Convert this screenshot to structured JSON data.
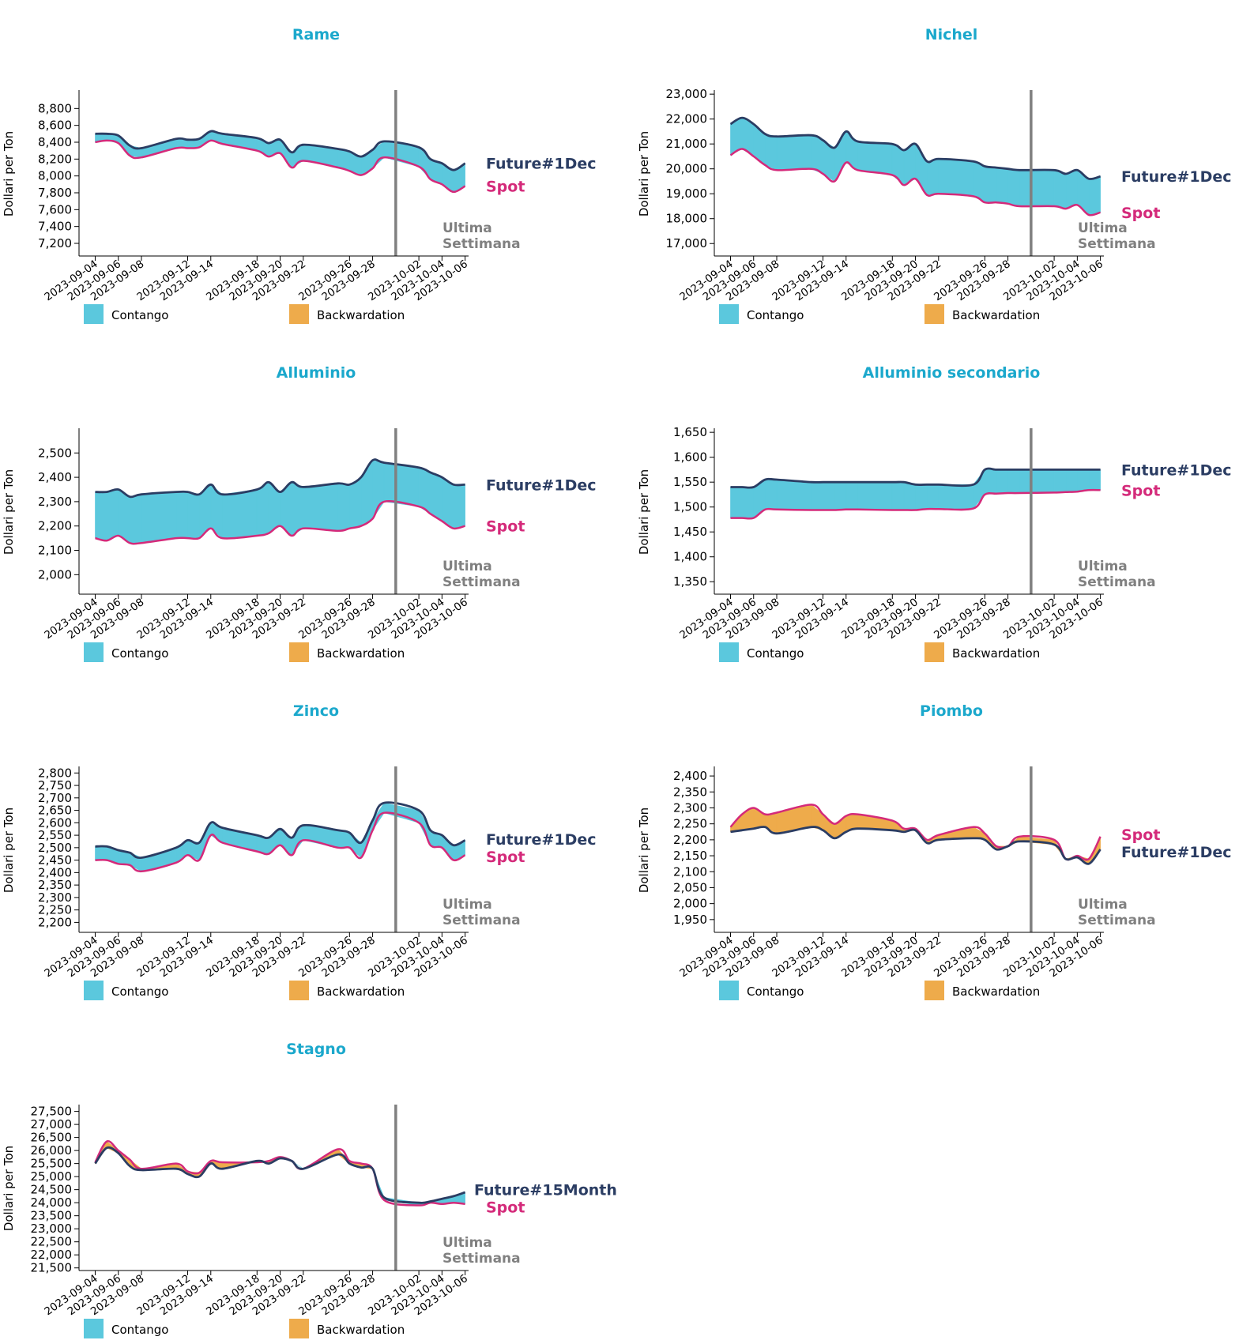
{
  "colors": {
    "title": "#1ba8cc",
    "future": "#2b3d63",
    "spot": "#d42a7a",
    "contango": "#5bc8dd",
    "backwardation": "#eeab4b",
    "last_week_line": "#808080",
    "last_week_text": "#808080",
    "axis": "#000000"
  },
  "common": {
    "ylabel": "Dollari per Ton",
    "last_week_label": [
      "Ultima",
      "Settimana"
    ],
    "last_week_date": "2023-09-30",
    "legend": [
      "Contango",
      "Backwardation"
    ],
    "x_ticks": [
      "2023-09-04",
      "2023-09-06",
      "2023-09-08",
      "2023-09-12",
      "2023-09-14",
      "2023-09-18",
      "2023-09-20",
      "2023-09-22",
      "2023-09-26",
      "2023-09-28",
      "2023-10-02",
      "2023-10-04",
      "2023-10-06"
    ],
    "x_dates": [
      "2023-09-04",
      "2023-09-05",
      "2023-09-06",
      "2023-09-07",
      "2023-09-08",
      "2023-09-11",
      "2023-09-12",
      "2023-09-13",
      "2023-09-14",
      "2023-09-15",
      "2023-09-18",
      "2023-09-19",
      "2023-09-20",
      "2023-09-21",
      "2023-09-22",
      "2023-09-25",
      "2023-09-26",
      "2023-09-27",
      "2023-09-28",
      "2023-09-29",
      "2023-10-02",
      "2023-10-03",
      "2023-10-04",
      "2023-10-05",
      "2023-10-06"
    ]
  },
  "chart_data": [
    {
      "type": "area",
      "title": "Rame",
      "ylim": [
        7050,
        9000
      ],
      "yticks": [
        7200,
        7400,
        7600,
        7800,
        8000,
        8200,
        8400,
        8600,
        8800
      ],
      "series": [
        {
          "name": "Future#1Dec",
          "values": [
            8500,
            8500,
            8480,
            8360,
            8330,
            8440,
            8430,
            8440,
            8530,
            8500,
            8450,
            8390,
            8430,
            8280,
            8370,
            8320,
            8290,
            8230,
            8310,
            8410,
            8340,
            8200,
            8150,
            8070,
            8150
          ]
        },
        {
          "name": "Spot",
          "values": [
            8400,
            8420,
            8390,
            8240,
            8220,
            8330,
            8330,
            8340,
            8420,
            8380,
            8300,
            8230,
            8270,
            8100,
            8180,
            8100,
            8060,
            8010,
            8090,
            8220,
            8110,
            7960,
            7900,
            7810,
            7880
          ]
        }
      ]
    },
    {
      "type": "area",
      "title": "Nichel",
      "ylim": [
        16500,
        23100
      ],
      "yticks": [
        17000,
        18000,
        19000,
        20000,
        21000,
        22000,
        23000
      ],
      "series": [
        {
          "name": "Future#1Dec",
          "values": [
            21800,
            22050,
            21800,
            21400,
            21300,
            21350,
            21150,
            20850,
            21500,
            21100,
            21000,
            20750,
            21000,
            20300,
            20400,
            20300,
            20100,
            20050,
            20000,
            19950,
            19950,
            19800,
            19950,
            19600,
            19700
          ]
        },
        {
          "name": "Spot",
          "values": [
            20550,
            20800,
            20500,
            20150,
            19950,
            20000,
            19800,
            19500,
            20250,
            19950,
            19750,
            19350,
            19600,
            18950,
            19000,
            18900,
            18650,
            18650,
            18600,
            18500,
            18500,
            18400,
            18550,
            18150,
            18250
          ]
        }
      ]
    },
    {
      "type": "area",
      "title": "Alluminio",
      "ylim": [
        1920,
        2595
      ],
      "yticks": [
        2000,
        2100,
        2200,
        2300,
        2400,
        2500
      ],
      "series": [
        {
          "name": "Future#1Dec",
          "values": [
            2340,
            2340,
            2350,
            2320,
            2330,
            2340,
            2340,
            2330,
            2370,
            2330,
            2350,
            2380,
            2340,
            2380,
            2360,
            2375,
            2370,
            2400,
            2470,
            2460,
            2440,
            2420,
            2400,
            2370,
            2370
          ]
        },
        {
          "name": "Spot",
          "values": [
            2150,
            2140,
            2160,
            2130,
            2130,
            2150,
            2150,
            2150,
            2190,
            2150,
            2160,
            2170,
            2200,
            2160,
            2190,
            2180,
            2190,
            2200,
            2230,
            2300,
            2280,
            2250,
            2220,
            2190,
            2200
          ]
        }
      ]
    },
    {
      "type": "area",
      "title": "Alluminio secondario",
      "ylim": [
        1325,
        1655
      ],
      "yticks": [
        1350,
        1400,
        1450,
        1500,
        1550,
        1600,
        1650
      ],
      "series": [
        {
          "name": "Future#1Dec",
          "values": [
            1540,
            1540,
            1540,
            1555,
            1555,
            1550,
            1550,
            1550,
            1550,
            1550,
            1550,
            1550,
            1545,
            1545,
            1545,
            1545,
            1575,
            1575,
            1575,
            1575,
            1575,
            1575,
            1575,
            1575,
            1575
          ]
        },
        {
          "name": "Spot",
          "values": [
            1478,
            1478,
            1478,
            1495,
            1495,
            1494,
            1494,
            1494,
            1495,
            1495,
            1494,
            1494,
            1494,
            1496,
            1496,
            1497,
            1525,
            1527,
            1528,
            1528,
            1529,
            1530,
            1531,
            1534,
            1534
          ]
        }
      ]
    },
    {
      "type": "area",
      "title": "Zinco",
      "ylim": [
        2160,
        2820
      ],
      "yticks": [
        2200,
        2250,
        2300,
        2350,
        2400,
        2450,
        2500,
        2550,
        2600,
        2650,
        2700,
        2750,
        2800
      ],
      "series": [
        {
          "name": "Future#1Dec",
          "values": [
            2505,
            2505,
            2490,
            2480,
            2460,
            2500,
            2530,
            2520,
            2600,
            2580,
            2550,
            2540,
            2575,
            2540,
            2590,
            2570,
            2560,
            2520,
            2610,
            2680,
            2650,
            2570,
            2550,
            2510,
            2530
          ]
        },
        {
          "name": "Spot",
          "values": [
            2450,
            2450,
            2435,
            2430,
            2405,
            2440,
            2470,
            2450,
            2550,
            2520,
            2485,
            2475,
            2510,
            2470,
            2530,
            2500,
            2500,
            2460,
            2570,
            2640,
            2600,
            2510,
            2500,
            2450,
            2470
          ]
        }
      ]
    },
    {
      "type": "area",
      "title": "Piombo",
      "ylim": [
        1910,
        2425
      ],
      "yticks": [
        1950,
        2000,
        2050,
        2100,
        2150,
        2200,
        2250,
        2300,
        2350,
        2400
      ],
      "series": [
        {
          "name": "Spot",
          "values": [
            2240,
            2280,
            2300,
            2280,
            2285,
            2310,
            2280,
            2250,
            2275,
            2280,
            2260,
            2235,
            2235,
            2200,
            2215,
            2240,
            2220,
            2180,
            2180,
            2210,
            2200,
            2140,
            2150,
            2140,
            2210
          ]
        },
        {
          "name": "Future#1Dec",
          "values": [
            2225,
            2230,
            2235,
            2240,
            2220,
            2240,
            2230,
            2205,
            2225,
            2235,
            2230,
            2225,
            2230,
            2190,
            2200,
            2205,
            2200,
            2170,
            2180,
            2195,
            2185,
            2140,
            2145,
            2125,
            2170
          ]
        }
      ]
    },
    {
      "type": "area",
      "title": "Stagno",
      "ylim": [
        21400,
        27700
      ],
      "yticks": [
        21500,
        22000,
        22500,
        23000,
        23500,
        24000,
        24500,
        25000,
        25500,
        26000,
        26500,
        27000,
        27500
      ],
      "series": [
        {
          "name": "Future#15Month",
          "values": [
            25500,
            26100,
            25900,
            25400,
            25250,
            25300,
            25100,
            25000,
            25500,
            25300,
            25600,
            25500,
            25700,
            25600,
            25300,
            25850,
            25500,
            25350,
            25300,
            24200,
            24000,
            24050,
            24150,
            24250,
            24400
          ]
        },
        {
          "name": "Spot",
          "values": [
            25550,
            26350,
            26000,
            25650,
            25300,
            25500,
            25200,
            25150,
            25600,
            25550,
            25550,
            25600,
            25750,
            25600,
            25300,
            26050,
            25600,
            25500,
            25300,
            24100,
            23900,
            24000,
            23950,
            24000,
            23950
          ]
        }
      ]
    }
  ]
}
